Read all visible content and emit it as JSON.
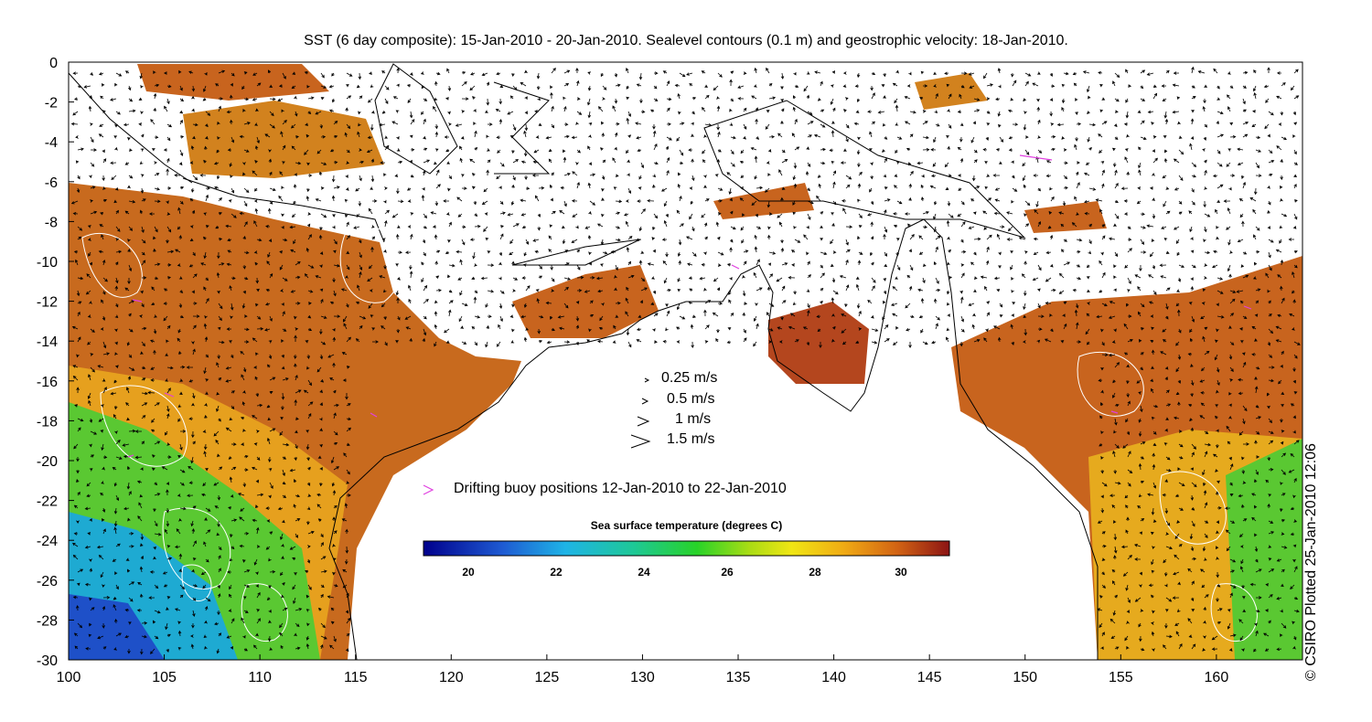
{
  "title": "SST (6 day composite): 15-Jan-2010 - 20-Jan-2010. Sealevel contours (0.1 m) and geostrophic velocity: 18-Jan-2010.",
  "credit": "© CSIRO Plotted 25-Jan-2010 12:06",
  "map": {
    "lon_range": [
      100,
      164.5
    ],
    "lat_range": [
      -30,
      0
    ],
    "x_ticks": [
      "100",
      "105",
      "110",
      "115",
      "120",
      "125",
      "130",
      "135",
      "140",
      "145",
      "150",
      "155",
      "160"
    ],
    "y_ticks": [
      "0",
      "-2",
      "-4",
      "-6",
      "-8",
      "-10",
      "-12",
      "-14",
      "-16",
      "-18",
      "-20",
      "-22",
      "-24",
      "-26",
      "-28",
      "-30"
    ]
  },
  "velocity_legend": [
    {
      "label": "0.25 m/s"
    },
    {
      "label": "0.5 m/s"
    },
    {
      "label": "1 m/s"
    },
    {
      "label": "1.5 m/s"
    }
  ],
  "buoy_legend": {
    "symbol": ">",
    "label": "Drifting buoy positions 12-Jan-2010 to 22-Jan-2010",
    "color": "#e040e0"
  },
  "colorbar": {
    "title": "Sea surface temperature (degrees C)",
    "range": [
      19,
      31
    ],
    "ticks": [
      "20",
      "22",
      "24",
      "26",
      "28",
      "30"
    ]
  },
  "colors": {
    "warm": "#c8641e",
    "hot": "#a0321e",
    "mid": "#e6a01e",
    "green": "#32c832",
    "cool": "#1ea0e6",
    "cold": "#1e32c8",
    "contour": "#ffffff",
    "coast": "#000000"
  }
}
